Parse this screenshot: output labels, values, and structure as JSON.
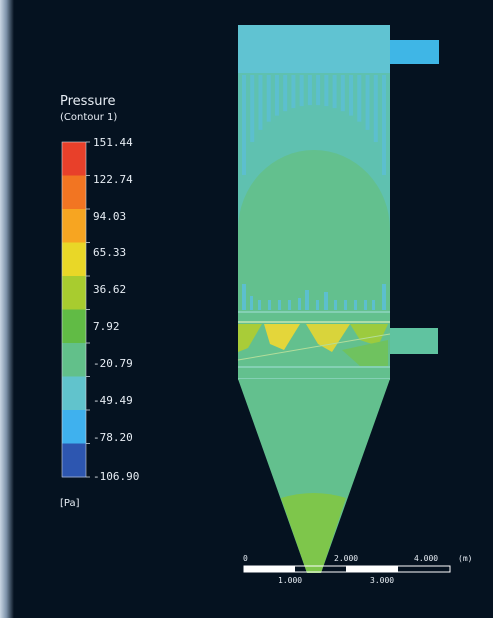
{
  "legend": {
    "title": "Pressure",
    "subtitle": "(Contour  1)",
    "unit": "[Pa]",
    "ticks": [
      "151.44",
      "122.74",
      "94.03",
      "65.33",
      "36.62",
      "7.92",
      "-20.79",
      "-49.49",
      "-78.20",
      "-106.90"
    ],
    "colors": [
      "#e8402a",
      "#f27522",
      "#f7a521",
      "#e9d727",
      "#a8cc2f",
      "#61bb45",
      "#62c08a",
      "#61c3cc",
      "#3fb1ee",
      "#2d56b0"
    ]
  },
  "scale": {
    "major_labels": [
      "0",
      "2.000",
      "4.000",
      "(m)"
    ],
    "minor_labels": [
      "1.000",
      "3.000"
    ]
  },
  "colors": {
    "background": "#051220",
    "inlet": "#60c3d2",
    "body": "#63c08e",
    "cone_bottom": "#7ec64b",
    "hot_spot": "#e4d63a"
  }
}
